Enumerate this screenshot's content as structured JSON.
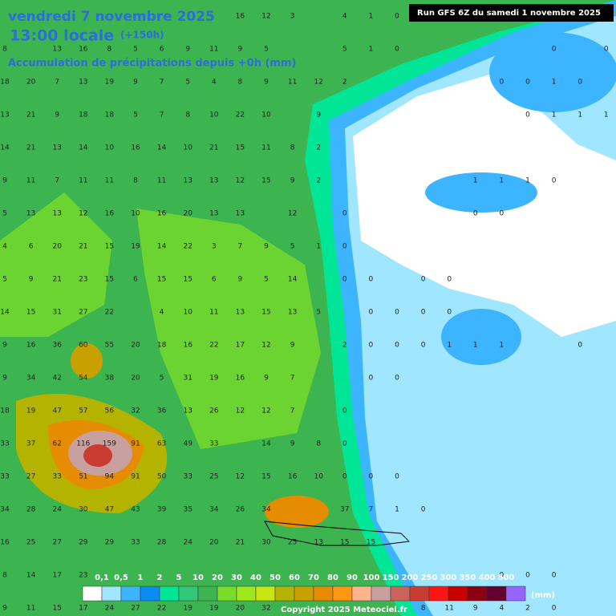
{
  "header": {
    "date": "vendredi 7 novembre 2025",
    "time": "13:00 locale",
    "lead": "(+150h)",
    "subtitle": "Accumulation de précipitations depuis +0h (mm)",
    "run": "Run GFS 6Z du samedi 1 novembre 2025"
  },
  "grid_values": [
    [
      null,
      null,
      null,
      null,
      null,
      null,
      null,
      null,
      null,
      16,
      12,
      3,
      null,
      4,
      1,
      0,
      null,
      null,
      null,
      null,
      null,
      null,
      null,
      null
    ],
    [
      8,
      null,
      13,
      16,
      8,
      5,
      6,
      9,
      11,
      9,
      5,
      null,
      null,
      5,
      1,
      0,
      null,
      null,
      null,
      null,
      null,
      0,
      null,
      0
    ],
    [
      18,
      20,
      7,
      13,
      19,
      9,
      7,
      5,
      4,
      8,
      9,
      11,
      12,
      2,
      null,
      null,
      null,
      null,
      null,
      0,
      0,
      1,
      0,
      null
    ],
    [
      13,
      21,
      9,
      18,
      18,
      5,
      7,
      8,
      10,
      22,
      10,
      null,
      9,
      null,
      null,
      null,
      null,
      null,
      null,
      null,
      0,
      1,
      1,
      1
    ],
    [
      14,
      21,
      13,
      14,
      10,
      16,
      14,
      10,
      21,
      15,
      11,
      8,
      2,
      null,
      null,
      null,
      null,
      null,
      null,
      null,
      null,
      null,
      null,
      null
    ],
    [
      9,
      11,
      7,
      11,
      11,
      8,
      11,
      13,
      13,
      12,
      15,
      9,
      2,
      null,
      null,
      null,
      null,
      null,
      1,
      1,
      1,
      0,
      null,
      null
    ],
    [
      5,
      13,
      13,
      12,
      16,
      10,
      16,
      20,
      13,
      13,
      null,
      12,
      null,
      0,
      null,
      null,
      null,
      null,
      0,
      0,
      null,
      null,
      null,
      null
    ],
    [
      4,
      6,
      20,
      21,
      15,
      19,
      14,
      22,
      3,
      7,
      9,
      5,
      1,
      0,
      null,
      null,
      null,
      null,
      null,
      null,
      null,
      null,
      null,
      null
    ],
    [
      5,
      9,
      21,
      23,
      15,
      6,
      15,
      15,
      6,
      9,
      5,
      14,
      null,
      0,
      0,
      null,
      0,
      0,
      null,
      null,
      null,
      null,
      null,
      null
    ],
    [
      14,
      15,
      31,
      27,
      22,
      null,
      4,
      10,
      11,
      13,
      15,
      13,
      5,
      null,
      0,
      0,
      0,
      0,
      null,
      null,
      null,
      null,
      null,
      null
    ],
    [
      9,
      16,
      36,
      60,
      55,
      20,
      18,
      16,
      22,
      17,
      12,
      9,
      null,
      2,
      0,
      0,
      0,
      1,
      1,
      1,
      null,
      null,
      0,
      null
    ],
    [
      9,
      34,
      42,
      54,
      38,
      20,
      5,
      31,
      19,
      16,
      9,
      7,
      null,
      null,
      0,
      0,
      null,
      null,
      null,
      null,
      null,
      null,
      null,
      null
    ],
    [
      18,
      19,
      47,
      57,
      56,
      32,
      36,
      13,
      26,
      12,
      12,
      7,
      null,
      0,
      null,
      null,
      null,
      null,
      null,
      null,
      null,
      null,
      null,
      null
    ],
    [
      33,
      37,
      62,
      116,
      159,
      91,
      63,
      49,
      33,
      null,
      14,
      9,
      8,
      0,
      null,
      null,
      null,
      null,
      null,
      null,
      null,
      null,
      null,
      null
    ],
    [
      33,
      27,
      33,
      51,
      94,
      91,
      50,
      33,
      25,
      12,
      15,
      16,
      10,
      0,
      0,
      0,
      null,
      null,
      null,
      null,
      null,
      null,
      null,
      null
    ],
    [
      34,
      28,
      24,
      30,
      47,
      43,
      39,
      35,
      34,
      26,
      34,
      null,
      null,
      37,
      7,
      1,
      0,
      null,
      null,
      null,
      null,
      null,
      null,
      null
    ],
    [
      16,
      25,
      27,
      29,
      29,
      33,
      28,
      24,
      20,
      21,
      30,
      25,
      13,
      15,
      15,
      null,
      null,
      null,
      null,
      null,
      null,
      null,
      null,
      null
    ],
    [
      8,
      14,
      17,
      23,
      null,
      null,
      null,
      null,
      null,
      null,
      null,
      null,
      null,
      null,
      null,
      null,
      null,
      null,
      null,
      0,
      0,
      0,
      null,
      null
    ],
    [
      9,
      11,
      15,
      17,
      24,
      27,
      22,
      19,
      19,
      20,
      32,
      null,
      null,
      null,
      null,
      null,
      8,
      11,
      9,
      4,
      2,
      0,
      null,
      null
    ]
  ],
  "legend": {
    "labels": [
      "0,1",
      "0,5",
      "1",
      "2",
      "5",
      "10",
      "20",
      "30",
      "40",
      "50",
      "60",
      "70",
      "80",
      "90",
      "100",
      "150",
      "200",
      "250",
      "300",
      "350",
      "400",
      "500"
    ],
    "colors": [
      "#ffffff",
      "#a0e6ff",
      "#3cb4ff",
      "#0a8cf0",
      "#00e696",
      "#32c878",
      "#3cb450",
      "#78dc28",
      "#a0e61e",
      "#c8e614",
      "#b4b400",
      "#c8a000",
      "#e68c00",
      "#ff9614",
      "#ffb48c",
      "#c8a0a0",
      "#c8645a",
      "#c83c32",
      "#ff1414",
      "#c80000",
      "#8c0014",
      "#640032",
      "#9664ff"
    ],
    "unit": "(mm)"
  },
  "footer": {
    "copyright": "Copyright 2025 Meteociel.fr"
  }
}
